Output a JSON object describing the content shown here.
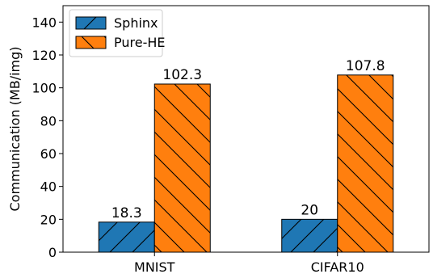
{
  "chart_data": {
    "type": "bar",
    "categories": [
      "MNIST",
      "CIFAR10"
    ],
    "series": [
      {
        "name": "Sphinx",
        "values": [
          18.3,
          20
        ],
        "labels": [
          "18.3",
          "20"
        ],
        "color": "#1f77b4",
        "hatch": "forward"
      },
      {
        "name": "Pure-HE",
        "values": [
          102.3,
          107.8
        ],
        "labels": [
          "102.3",
          "107.8"
        ],
        "color": "#ff7f0e",
        "hatch": "backward"
      }
    ],
    "ylabel": "Communication (MB/img)",
    "xlabel": "",
    "ylim": [
      0,
      150
    ],
    "yticks": [
      0,
      20,
      40,
      60,
      80,
      100,
      120,
      140
    ],
    "grid": false,
    "legend": "top-left"
  }
}
